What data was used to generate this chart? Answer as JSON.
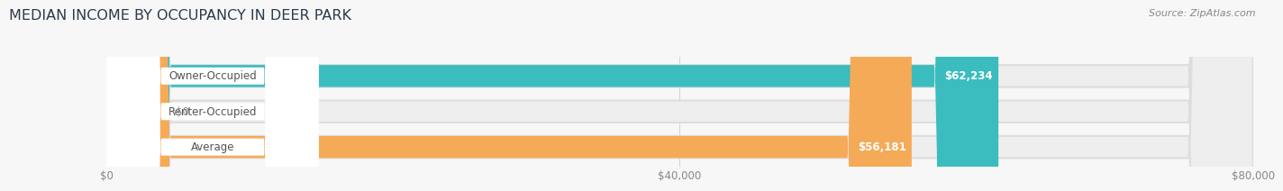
{
  "title": "MEDIAN INCOME BY OCCUPANCY IN DEER PARK",
  "source": "Source: ZipAtlas.com",
  "categories": [
    "Owner-Occupied",
    "Renter-Occupied",
    "Average"
  ],
  "values": [
    62234,
    0,
    56181
  ],
  "bar_colors": [
    "#3bbcbf",
    "#c3a8d1",
    "#f5aa58"
  ],
  "value_labels": [
    "$62,234",
    "$0",
    "$56,181"
  ],
  "x_ticks": [
    0,
    40000,
    80000
  ],
  "x_tick_labels": [
    "$0",
    "$40,000",
    "$80,000"
  ],
  "xlim": [
    0,
    80000
  ],
  "bg_color": "#f7f7f7",
  "bar_bg_color": "#e8e8e8",
  "title_fontsize": 11.5,
  "source_fontsize": 8,
  "label_fontsize": 8.5,
  "value_fontsize": 8.5,
  "tick_fontsize": 8.5,
  "bar_height": 0.62,
  "figsize": [
    14.06,
    1.97
  ]
}
